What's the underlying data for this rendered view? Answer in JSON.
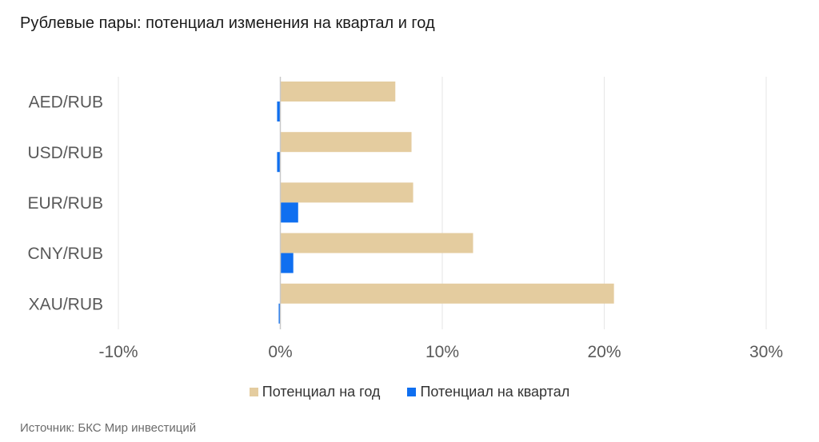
{
  "title": "Рублевые пары: потенциал изменения на квартал и год",
  "source": "Источник: БКС Мир инвестиций",
  "chart_data": {
    "type": "bar",
    "orientation": "horizontal",
    "categories": [
      "AED/RUB",
      "USD/RUB",
      "EUR/RUB",
      "CNY/RUB",
      "XAU/RUB"
    ],
    "series": [
      {
        "name": "Потенциал на год",
        "color": "#e4cc9f",
        "values": [
          7.1,
          8.1,
          8.2,
          11.9,
          20.6
        ]
      },
      {
        "name": "Потенциал на квартал",
        "color": "#0f6ff0",
        "values": [
          -0.2,
          -0.2,
          1.1,
          0.8,
          -0.1
        ]
      }
    ],
    "xlim": [
      -10,
      30
    ],
    "xticks": [
      -10,
      0,
      10,
      20,
      30
    ],
    "xtick_labels": [
      "-10%",
      "0%",
      "10%",
      "20%",
      "30%"
    ],
    "grid": true,
    "legend_position": "bottom"
  }
}
